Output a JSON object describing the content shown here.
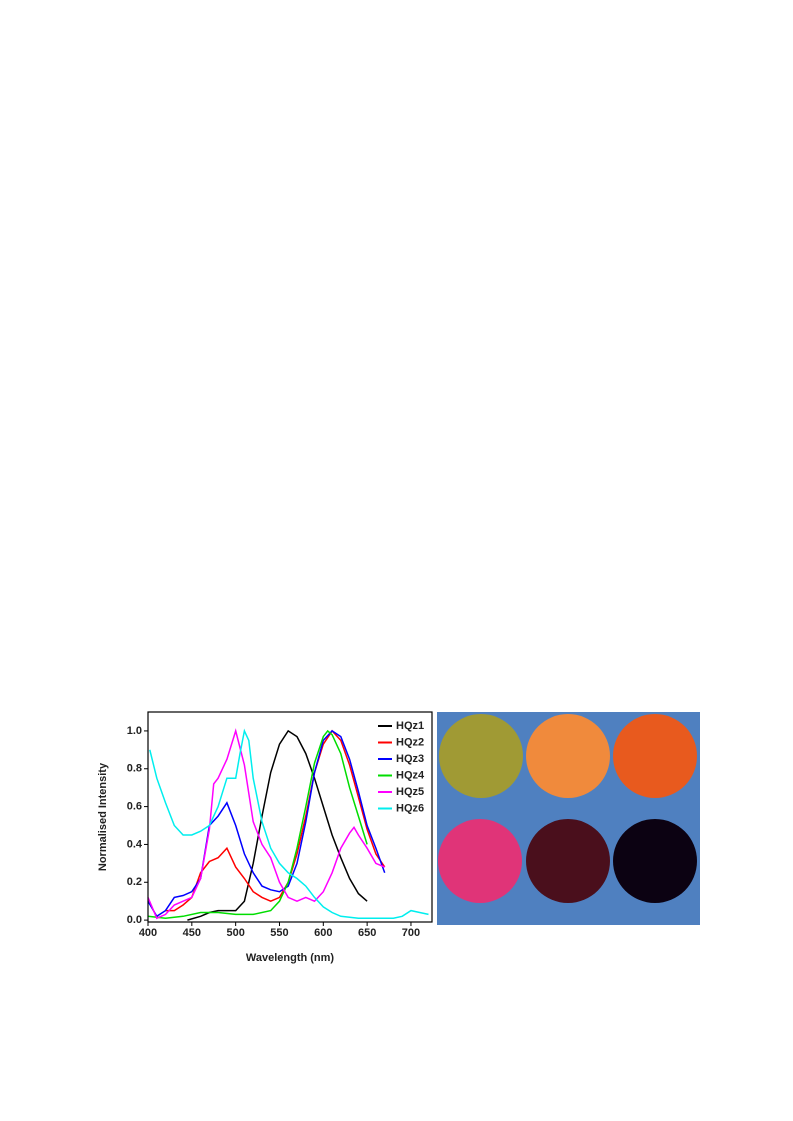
{
  "chart_data": {
    "type": "line",
    "x_label": "Wavelength (nm)",
    "y_label": "Normalised Intensity",
    "xlim": [
      400,
      724
    ],
    "xticks": [
      400,
      450,
      500,
      550,
      600,
      650,
      700
    ],
    "ylim": [
      -0.01,
      1.1
    ],
    "yticks": [
      {
        "value": 0,
        "label": "0.0"
      },
      0.2,
      0.4,
      0.6,
      0.8,
      {
        "value": 1,
        "label": "1.0"
      }
    ],
    "legend": "top-right",
    "series": [
      {
        "name": "HQz1",
        "color": "#000000",
        "x": [
          445,
          460,
          470,
          480,
          490,
          500,
          510,
          520,
          530,
          540,
          550,
          560,
          570,
          580,
          590,
          600,
          610,
          620,
          630,
          640,
          650
        ],
        "values": [
          0.0,
          0.02,
          0.04,
          0.05,
          0.05,
          0.05,
          0.1,
          0.3,
          0.55,
          0.78,
          0.93,
          1.0,
          0.97,
          0.88,
          0.75,
          0.6,
          0.45,
          0.33,
          0.22,
          0.14,
          0.1
        ]
      },
      {
        "name": "HQz2",
        "color": "#ff0000",
        "x": [
          420,
          430,
          440,
          450,
          460,
          470,
          480,
          490,
          500,
          510,
          520,
          530,
          540,
          550,
          560,
          570,
          580,
          590,
          600,
          610,
          620,
          630,
          640,
          650,
          660,
          670
        ],
        "values": [
          0.05,
          0.05,
          0.08,
          0.12,
          0.25,
          0.31,
          0.33,
          0.38,
          0.28,
          0.22,
          0.15,
          0.12,
          0.1,
          0.12,
          0.2,
          0.35,
          0.55,
          0.78,
          0.93,
          1.0,
          0.95,
          0.82,
          0.65,
          0.48,
          0.35,
          0.28
        ]
      },
      {
        "name": "HQz3",
        "color": "#0000ff",
        "x": [
          400,
          410,
          420,
          430,
          440,
          450,
          460,
          470,
          480,
          490,
          500,
          510,
          520,
          530,
          540,
          550,
          560,
          570,
          580,
          590,
          600,
          610,
          620,
          630,
          640,
          650,
          660,
          670
        ],
        "values": [
          0.1,
          0.02,
          0.05,
          0.12,
          0.13,
          0.15,
          0.22,
          0.5,
          0.55,
          0.62,
          0.5,
          0.35,
          0.25,
          0.18,
          0.16,
          0.15,
          0.18,
          0.3,
          0.52,
          0.78,
          0.95,
          1.0,
          0.97,
          0.85,
          0.68,
          0.5,
          0.38,
          0.25
        ]
      },
      {
        "name": "HQz4",
        "color": "#00dd00",
        "x": [
          400,
          420,
          440,
          460,
          480,
          500,
          520,
          540,
          550,
          560,
          570,
          580,
          590,
          600,
          605,
          610,
          620,
          630,
          640,
          650
        ],
        "values": [
          0.02,
          0.01,
          0.02,
          0.04,
          0.04,
          0.03,
          0.03,
          0.05,
          0.1,
          0.2,
          0.38,
          0.6,
          0.83,
          0.97,
          1.0,
          0.98,
          0.88,
          0.7,
          0.55,
          0.4
        ]
      },
      {
        "name": "HQz5",
        "color": "#ff00ff",
        "x": [
          400,
          410,
          420,
          430,
          440,
          450,
          460,
          470,
          475,
          480,
          490,
          500,
          510,
          520,
          530,
          540,
          550,
          560,
          570,
          580,
          590,
          600,
          610,
          620,
          630,
          635,
          640,
          650,
          660,
          670
        ],
        "values": [
          0.12,
          0.01,
          0.03,
          0.08,
          0.1,
          0.12,
          0.22,
          0.48,
          0.72,
          0.75,
          0.85,
          1.0,
          0.82,
          0.52,
          0.4,
          0.33,
          0.2,
          0.12,
          0.1,
          0.12,
          0.1,
          0.15,
          0.25,
          0.38,
          0.46,
          0.49,
          0.45,
          0.38,
          0.3,
          0.28
        ]
      },
      {
        "name": "HQz6",
        "color": "#00eeee",
        "x": [
          402,
          410,
          420,
          430,
          440,
          450,
          460,
          470,
          480,
          490,
          500,
          505,
          510,
          515,
          520,
          530,
          540,
          550,
          560,
          570,
          580,
          590,
          600,
          610,
          620,
          640,
          660,
          680,
          690,
          700,
          710,
          720
        ],
        "values": [
          0.9,
          0.75,
          0.62,
          0.5,
          0.45,
          0.45,
          0.47,
          0.5,
          0.6,
          0.75,
          0.75,
          0.88,
          1.0,
          0.95,
          0.75,
          0.52,
          0.38,
          0.3,
          0.25,
          0.22,
          0.18,
          0.12,
          0.07,
          0.04,
          0.02,
          0.01,
          0.01,
          0.01,
          0.02,
          0.05,
          0.04,
          0.03
        ]
      }
    ]
  }
}
